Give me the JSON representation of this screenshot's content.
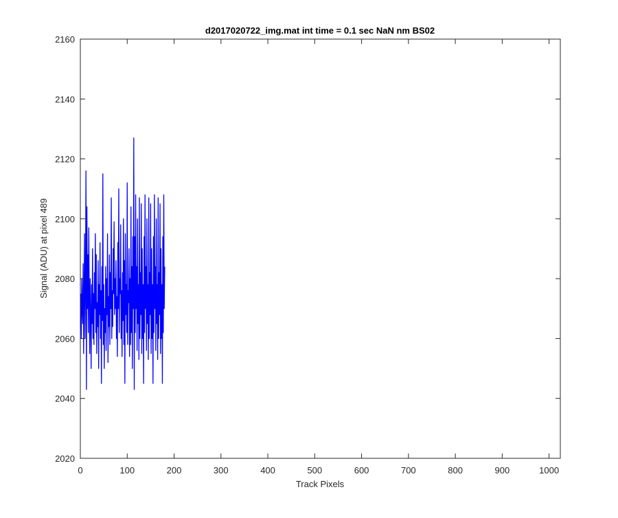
{
  "chart_data": {
    "type": "line",
    "title": "d2017020722_img.mat int time = 0.1 sec  NaN nm BS02",
    "xlabel": "Track Pixels",
    "ylabel": "Signal (ADU) at pixel 489",
    "xlim": [
      0,
      1024
    ],
    "ylim": [
      2020,
      2160
    ],
    "xticks": [
      0,
      100,
      200,
      300,
      400,
      500,
      600,
      700,
      800,
      900,
      1000
    ],
    "yticks": [
      2020,
      2040,
      2060,
      2080,
      2100,
      2120,
      2140,
      2160
    ],
    "grid": false,
    "legend": "none",
    "series": [
      {
        "color": "#0000ff",
        "x_start": 1,
        "x_step": 1,
        "values": [
          2075,
          2060,
          2080,
          2070,
          2065,
          2085,
          2055,
          2075,
          2095,
          2060,
          2080,
          2116,
          2043,
          2104,
          2070,
          2088,
          2062,
          2097,
          2075,
          2055,
          2080,
          2068,
          2050,
          2078,
          2065,
          2090,
          2060,
          2075,
          2058,
          2082,
          2070,
          2095,
          2062,
          2088,
          2055,
          2072,
          2064,
          2086,
          2050,
          2078,
          2068,
          2092,
          2060,
          2076,
          2045,
          2084,
          2066,
          2115,
          2058,
          2078,
          2050,
          2070,
          2062,
          2084,
          2056,
          2080,
          2068,
          2095,
          2052,
          2074,
          2064,
          2088,
          2058,
          2082,
          2070,
          2107,
          2060,
          2076,
          2064,
          2090,
          2075,
          2099,
          2068,
          2080,
          2070,
          2086,
          2060,
          2074,
          2054,
          2092,
          2070,
          2110,
          2062,
          2080,
          2075,
          2098,
          2060,
          2076,
          2054,
          2082,
          2066,
          2100,
          2058,
          2086,
          2045,
          2095,
          2068,
          2078,
          2062,
          2112,
          2058,
          2076,
          2072,
          2090,
          2054,
          2080,
          2058,
          2104,
          2062,
          2084,
          2050,
          2094,
          2070,
          2127,
          2043,
          2094,
          2062,
          2108,
          2070,
          2084,
          2056,
          2100,
          2065,
          2078,
          2053,
          2107,
          2060,
          2082,
          2068,
          2105,
          2055,
          2090,
          2060,
          2078,
          2045,
          2094,
          2062,
          2108,
          2070,
          2084,
          2056,
          2100,
          2065,
          2078,
          2053,
          2107,
          2060,
          2082,
          2068,
          2105,
          2055,
          2090,
          2060,
          2078,
          2045,
          2094,
          2062,
          2108,
          2070,
          2084,
          2056,
          2100,
          2065,
          2078,
          2053,
          2107,
          2060,
          2082,
          2068,
          2105,
          2055,
          2090,
          2060,
          2078,
          2045,
          2094,
          2062,
          2108,
          2070,
          2084
        ],
        "values_note_ignore": ""
      }
    ]
  }
}
